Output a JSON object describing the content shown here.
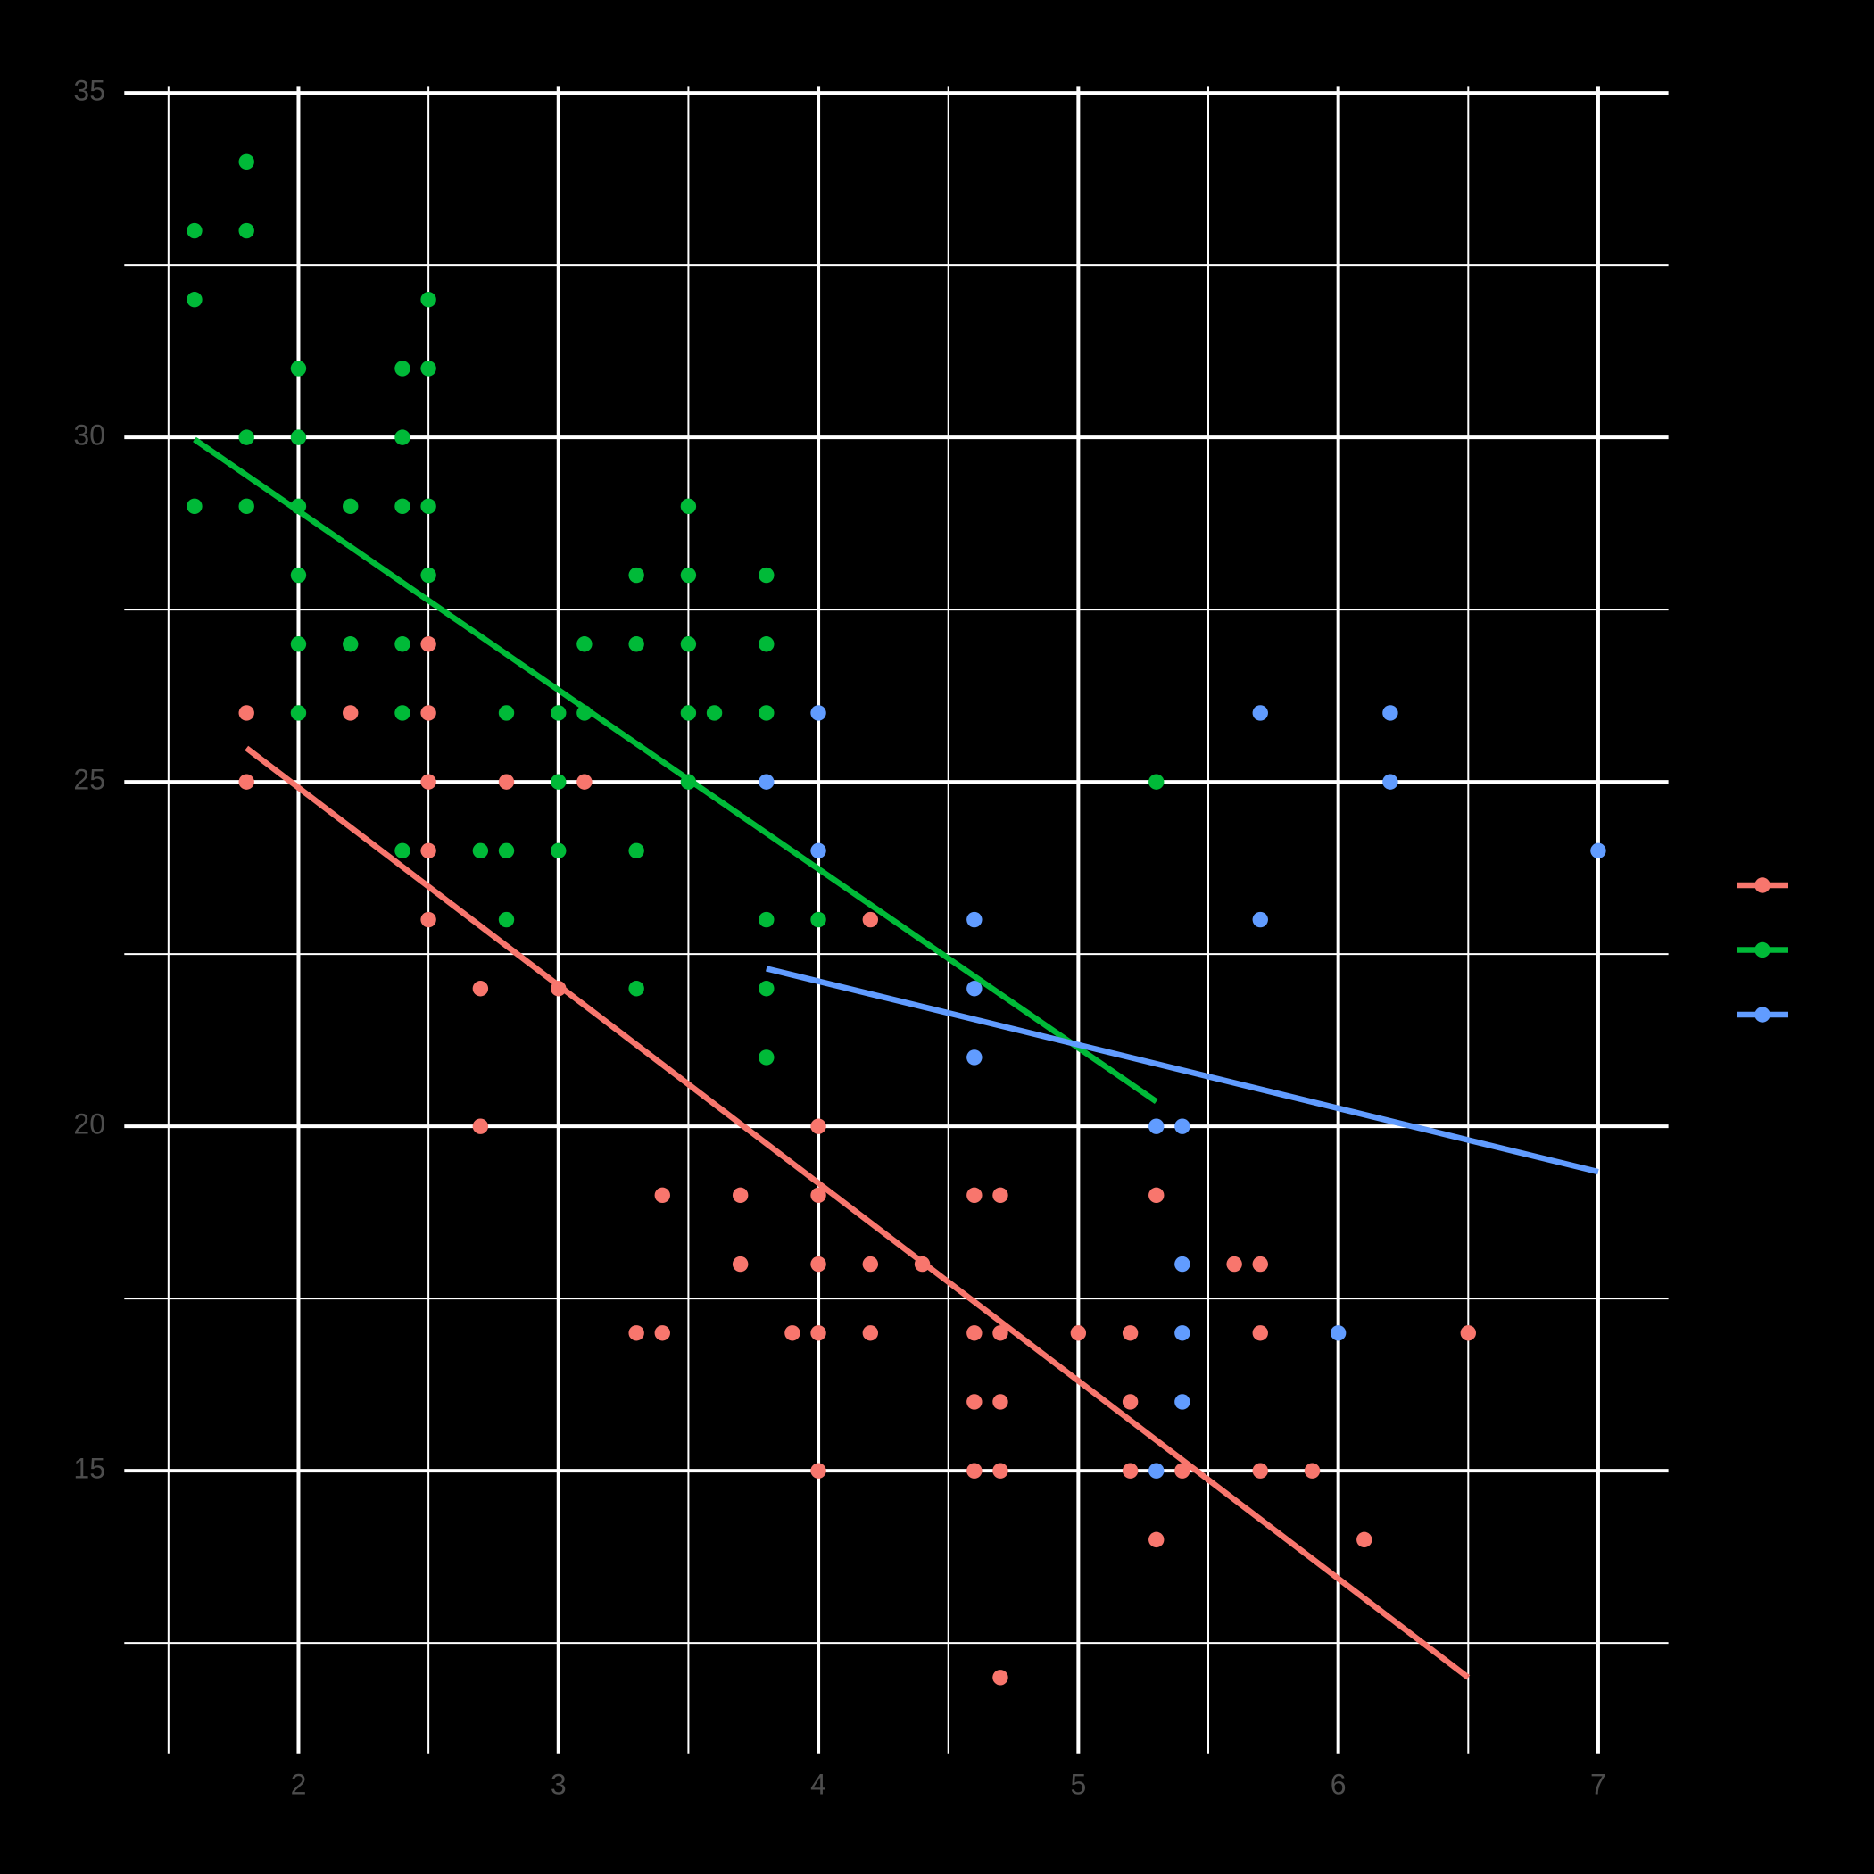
{
  "chart_data": {
    "type": "scatter",
    "xlim": [
      1.33,
      7.27
    ],
    "ylim": [
      10.9,
      35.1
    ],
    "xticks": [
      2,
      3,
      4,
      5,
      6,
      7
    ],
    "yticks": [
      15,
      20,
      25,
      30,
      35
    ],
    "x_minor_grid": [
      1.5,
      2.5,
      3.5,
      4.5,
      5.5,
      6.5
    ],
    "y_minor_grid": [
      12.5,
      17.5,
      22.5,
      27.5,
      32.5
    ],
    "grid": true,
    "legend": "right",
    "series": [
      {
        "color": "#F8766D",
        "x": [
          1.8,
          1.8,
          2.2,
          2.5,
          2.5,
          2.5,
          2.5,
          2.5,
          2.7,
          2.7,
          2.8,
          3.0,
          3.1,
          3.3,
          3.4,
          3.4,
          3.7,
          3.7,
          3.9,
          4.0,
          4.0,
          4.0,
          4.0,
          4.0,
          4.2,
          4.2,
          4.2,
          4.4,
          4.6,
          4.6,
          4.6,
          4.6,
          4.7,
          4.7,
          4.7,
          4.7,
          4.7,
          5.0,
          5.2,
          5.2,
          5.2,
          5.3,
          5.3,
          5.4,
          5.6,
          5.7,
          5.7,
          5.7,
          5.9,
          6.1,
          6.5
        ],
        "y": [
          26,
          25,
          26,
          27,
          26,
          25,
          24,
          23,
          22,
          20,
          25,
          22,
          25,
          17,
          19,
          17,
          19,
          18,
          17,
          20,
          19,
          18,
          17,
          15,
          23,
          18,
          17,
          18,
          19,
          17,
          16,
          15,
          19,
          17,
          16,
          15,
          12,
          17,
          17,
          16,
          15,
          19,
          14,
          15,
          18,
          18,
          17,
          15,
          15,
          14,
          17
        ],
        "fit": {
          "x": [
            1.8,
            6.5
          ],
          "y": [
            25.49,
            12.0
          ]
        }
      },
      {
        "color": "#00BA38",
        "x": [
          1.6,
          1.6,
          1.6,
          1.8,
          1.8,
          1.8,
          1.8,
          2.0,
          2.0,
          2.0,
          2.0,
          2.0,
          2.0,
          2.2,
          2.2,
          2.4,
          2.4,
          2.4,
          2.4,
          2.4,
          2.4,
          2.5,
          2.5,
          2.5,
          2.5,
          2.7,
          2.8,
          2.8,
          2.8,
          3.0,
          3.0,
          3.0,
          3.1,
          3.1,
          3.3,
          3.3,
          3.3,
          3.3,
          3.5,
          3.5,
          3.5,
          3.5,
          3.5,
          3.6,
          3.8,
          3.8,
          3.8,
          3.8,
          3.8,
          3.8,
          4.0,
          5.3
        ],
        "y": [
          33,
          32,
          29,
          34,
          33,
          30,
          29,
          31,
          30,
          29,
          28,
          27,
          26,
          29,
          27,
          31,
          30,
          29,
          27,
          26,
          24,
          32,
          31,
          29,
          28,
          24,
          26,
          24,
          23,
          26,
          25,
          24,
          27,
          26,
          28,
          27,
          24,
          22,
          29,
          28,
          27,
          26,
          25,
          26,
          28,
          27,
          26,
          23,
          22,
          21,
          23,
          25
        ],
        "fit": {
          "x": [
            1.6,
            5.3
          ],
          "y": [
            29.97,
            20.36
          ]
        }
      },
      {
        "color": "#619CFF",
        "x": [
          3.8,
          4.0,
          4.0,
          4.6,
          4.6,
          4.6,
          5.3,
          5.3,
          5.4,
          5.4,
          5.4,
          5.4,
          5.7,
          5.7,
          6.0,
          6.2,
          6.2,
          7.0
        ],
        "y": [
          25,
          26,
          24,
          23,
          22,
          21,
          20,
          15,
          20,
          18,
          17,
          16,
          26,
          23,
          17,
          26,
          25,
          24
        ],
        "fit": {
          "x": [
            3.8,
            7.0
          ],
          "y": [
            22.29,
            19.34
          ]
        }
      }
    ]
  }
}
